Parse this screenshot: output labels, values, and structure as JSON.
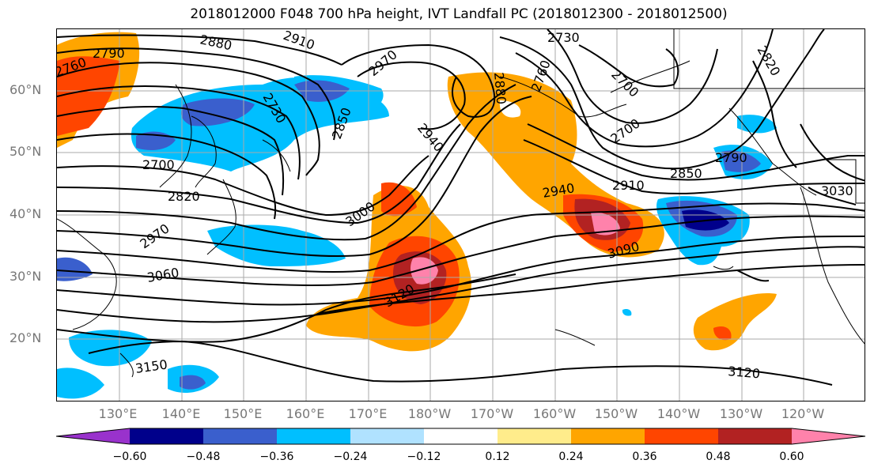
{
  "title": "2018012000 F048 700 hPa height, IVT Landfall PC (2018012300 - 2018012500)",
  "lat_labels": [
    "60°N",
    "50°N",
    "40°N",
    "30°N",
    "20°N"
  ],
  "lon_labels": [
    "130°E",
    "140°E",
    "150°E",
    "160°E",
    "170°E",
    "180°W",
    "170°W",
    "160°W",
    "150°W",
    "140°W",
    "130°W",
    "120°W"
  ],
  "colorbar": {
    "colors": [
      "#9932cc",
      "#00008b",
      "#3a5fcd",
      "#00bfff",
      "#b0e2ff",
      "#ffffff",
      "#ffec8b",
      "#ffa500",
      "#ff4500",
      "#b22222",
      "#ff82ab"
    ],
    "labels": [
      "−0.60",
      "−0.48",
      "−0.36",
      "−0.24",
      "−0.12",
      "0.12",
      "0.24",
      "0.36",
      "0.48",
      "0.60"
    ]
  },
  "contour_labels": [
    "2790",
    "2760",
    "2880",
    "2910",
    "2730",
    "2820",
    "2970",
    "2880",
    "2760",
    "2700",
    "2730",
    "2850",
    "2940",
    "2700",
    "2850",
    "2790",
    "2700",
    "2820",
    "2940",
    "2910",
    "3030",
    "3000",
    "2970",
    "3090",
    "3060",
    "3120",
    "3150",
    "3120"
  ]
}
